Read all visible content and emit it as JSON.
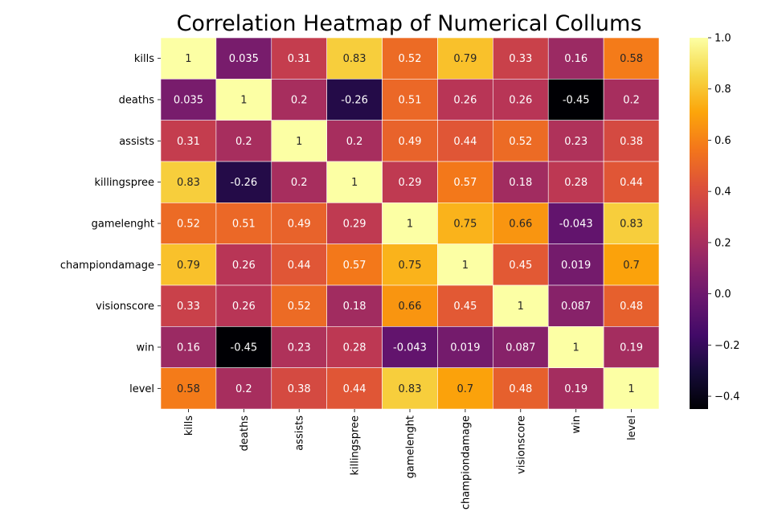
{
  "chart_data": {
    "type": "heatmap",
    "title": "Correlation Heatmap of Numerical Collums",
    "row_labels": [
      "kills",
      "deaths",
      "assists",
      "killingspree",
      "gamelenght",
      "championdamage",
      "visionscore",
      "win",
      "level"
    ],
    "col_labels": [
      "kills",
      "deaths",
      "assists",
      "killingspree",
      "gamelenght",
      "championdamage",
      "visionscore",
      "win",
      "level"
    ],
    "values": [
      [
        1,
        0.035,
        0.31,
        0.83,
        0.52,
        0.79,
        0.33,
        0.16,
        0.58
      ],
      [
        0.035,
        1,
        0.2,
        -0.26,
        0.51,
        0.26,
        0.26,
        -0.45,
        0.2
      ],
      [
        0.31,
        0.2,
        1,
        0.2,
        0.49,
        0.44,
        0.52,
        0.23,
        0.38
      ],
      [
        0.83,
        -0.26,
        0.2,
        1,
        0.29,
        0.57,
        0.18,
        0.28,
        0.44
      ],
      [
        0.52,
        0.51,
        0.49,
        0.29,
        1,
        0.75,
        0.66,
        -0.043,
        0.83
      ],
      [
        0.79,
        0.26,
        0.44,
        0.57,
        0.75,
        1,
        0.45,
        0.019,
        0.7
      ],
      [
        0.33,
        0.26,
        0.52,
        0.18,
        0.66,
        0.45,
        1,
        0.087,
        0.48
      ],
      [
        0.16,
        -0.45,
        0.23,
        0.28,
        -0.043,
        0.019,
        0.087,
        1,
        0.19
      ],
      [
        0.58,
        0.2,
        0.38,
        0.44,
        0.83,
        0.7,
        0.48,
        0.19,
        1
      ]
    ],
    "annotations": true,
    "colormap": "inferno",
    "vmin": -0.45,
    "vmax": 1,
    "colorbar_ticks": [
      "1.0",
      "0.8",
      "0.6",
      "0.4",
      "0.2",
      "0.0",
      "−0.2",
      "−0.4"
    ],
    "colorbar_tick_values": [
      1.0,
      0.8,
      0.6,
      0.4,
      0.2,
      0.0,
      -0.2,
      -0.4
    ],
    "cell_border_color": "#ffffff",
    "xlabel": "",
    "ylabel": ""
  }
}
